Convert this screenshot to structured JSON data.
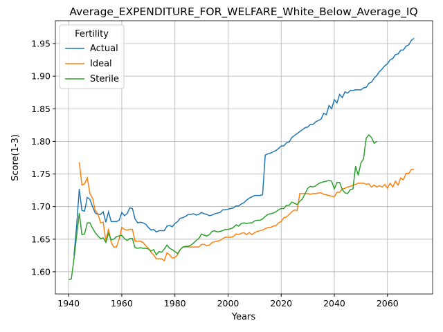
{
  "chart_data": {
    "type": "line",
    "title": "Average_EXPENDITURE_FOR_WELFARE_White_Below_Average_IQ",
    "x_label": "Years",
    "y_label": "Score(1-3)",
    "legend_title": "Fertility",
    "legend_position": "upper left",
    "grid": true,
    "xlim": [
      1935,
      2077
    ],
    "ylim": [
      1.566,
      1.985
    ],
    "xticks": [
      1940,
      1960,
      1980,
      2000,
      2020,
      2040,
      2060
    ],
    "yticks": [
      {
        "value": 1.6,
        "label": "1.60"
      },
      1.65,
      {
        "value": 1.7,
        "label": "1.70"
      },
      1.75,
      {
        "value": 1.8,
        "label": "1.80"
      },
      1.85,
      {
        "value": 1.9,
        "label": "1.90"
      },
      1.95
    ],
    "x": [
      1940,
      1941,
      1942,
      1943,
      1944,
      1945,
      1946,
      1947,
      1948,
      1949,
      1950,
      1951,
      1952,
      1953,
      1954,
      1955,
      1956,
      1957,
      1958,
      1959,
      1960,
      1961,
      1962,
      1963,
      1964,
      1965,
      1966,
      1967,
      1968,
      1969,
      1970,
      1971,
      1972,
      1973,
      1974,
      1975,
      1976,
      1977,
      1978,
      1979,
      1980,
      1981,
      1982,
      1983,
      1984,
      1985,
      1986,
      1987,
      1988,
      1989,
      1990,
      1991,
      1992,
      1993,
      1994,
      1995,
      1996,
      1997,
      1998,
      1999,
      2000,
      2001,
      2002,
      2003,
      2004,
      2005,
      2006,
      2007,
      2008,
      2009,
      2010,
      2011,
      2012,
      2013,
      2014,
      2015,
      2016,
      2017,
      2018,
      2019,
      2020,
      2021,
      2022,
      2023,
      2024,
      2025,
      2026,
      2027,
      2028,
      2029,
      2030,
      2031,
      2032,
      2033,
      2034,
      2035,
      2036,
      2037,
      2038,
      2039,
      2040,
      2041,
      2042,
      2043,
      2044,
      2045,
      2046,
      2047,
      2048,
      2049,
      2050,
      2051,
      2052,
      2053,
      2054,
      2055,
      2056,
      2057,
      2058,
      2059,
      2060,
      2061,
      2062,
      2063,
      2064,
      2065,
      2066,
      2067,
      2068,
      2069,
      2070
    ],
    "series": [
      {
        "name": "Actual",
        "color": "#1f77b4",
        "values": [
          null,
          null,
          1.625,
          1.67,
          1.727,
          1.694,
          1.693,
          1.714,
          1.711,
          1.7,
          1.69,
          1.688,
          1.688,
          1.692,
          1.676,
          1.692,
          1.677,
          1.677,
          1.677,
          1.679,
          1.691,
          1.686,
          1.689,
          1.698,
          1.697,
          1.681,
          1.675,
          1.676,
          1.675,
          1.673,
          1.668,
          1.664,
          1.665,
          1.661,
          1.663,
          1.663,
          1.663,
          1.67,
          1.671,
          1.669,
          1.674,
          1.677,
          1.682,
          1.683,
          1.685,
          1.688,
          1.688,
          1.689,
          1.687,
          1.688,
          1.691,
          1.689,
          1.688,
          1.686,
          1.687,
          1.689,
          1.69,
          1.691,
          1.695,
          1.695,
          1.696,
          1.697,
          1.698,
          1.701,
          1.701,
          1.704,
          1.706,
          1.71,
          1.713,
          1.715,
          1.717,
          1.717,
          1.717,
          1.718,
          1.779,
          1.781,
          1.782,
          1.784,
          1.786,
          1.789,
          1.793,
          1.793,
          1.798,
          1.799,
          1.806,
          1.809,
          1.812,
          1.815,
          1.818,
          1.821,
          1.822,
          1.826,
          1.826,
          1.83,
          1.832,
          1.834,
          1.843,
          1.841,
          1.855,
          1.85,
          1.864,
          1.859,
          1.872,
          1.867,
          1.876,
          1.874,
          1.878,
          1.878,
          1.879,
          1.879,
          1.879,
          1.882,
          1.883,
          1.889,
          1.891,
          1.897,
          1.901,
          1.907,
          1.911,
          1.916,
          1.919,
          1.925,
          1.927,
          1.933,
          1.934,
          1.94,
          1.94,
          1.946,
          1.948,
          1.955,
          1.958
        ]
      },
      {
        "name": "Ideal",
        "color": "#ff7f0e",
        "values": [
          null,
          null,
          null,
          null,
          1.768,
          1.733,
          1.735,
          1.744,
          1.72,
          1.713,
          1.694,
          1.689,
          1.675,
          1.676,
          1.647,
          1.666,
          1.645,
          1.638,
          1.638,
          1.65,
          1.668,
          1.665,
          1.664,
          1.665,
          1.665,
          1.647,
          1.647,
          1.647,
          1.645,
          1.64,
          1.636,
          1.63,
          1.626,
          1.62,
          1.62,
          1.62,
          1.617,
          1.629,
          1.626,
          1.621,
          1.622,
          1.626,
          1.634,
          1.638,
          1.638,
          1.638,
          1.638,
          1.638,
          1.638,
          1.638,
          1.642,
          1.642,
          1.64,
          1.641,
          1.645,
          1.646,
          1.647,
          1.648,
          1.651,
          1.653,
          1.653,
          1.653,
          1.654,
          1.658,
          1.657,
          1.659,
          1.66,
          1.657,
          1.66,
          1.657,
          1.66,
          1.662,
          1.663,
          1.664,
          1.666,
          1.668,
          1.668,
          1.67,
          1.671,
          1.675,
          1.677,
          1.683,
          1.684,
          1.688,
          1.692,
          1.695,
          1.694,
          1.72,
          1.72,
          1.72,
          1.72,
          1.719,
          1.72,
          1.72,
          1.721,
          1.721,
          1.719,
          1.718,
          1.717,
          1.716,
          1.715,
          1.722,
          1.722,
          1.727,
          1.728,
          1.73,
          1.731,
          1.733,
          1.734,
          1.736,
          1.736,
          1.736,
          1.734,
          1.735,
          1.73,
          1.733,
          1.73,
          1.732,
          1.73,
          1.734,
          1.728,
          1.736,
          1.73,
          1.739,
          1.733,
          1.744,
          1.741,
          1.751,
          1.751,
          1.757,
          1.757
        ]
      },
      {
        "name": "Sterile",
        "color": "#2ca02c",
        "values": [
          1.588,
          1.589,
          1.62,
          1.655,
          1.69,
          1.657,
          1.658,
          1.675,
          1.675,
          1.667,
          1.66,
          1.655,
          1.651,
          1.652,
          1.645,
          1.659,
          1.649,
          1.65,
          1.654,
          1.655,
          1.656,
          1.651,
          1.648,
          1.651,
          1.651,
          1.637,
          1.636,
          1.637,
          1.636,
          1.636,
          1.635,
          1.632,
          1.634,
          1.626,
          1.631,
          1.63,
          1.635,
          1.641,
          1.636,
          1.634,
          1.631,
          1.628,
          1.634,
          1.638,
          1.639,
          1.639,
          1.641,
          1.644,
          1.648,
          1.651,
          1.658,
          1.656,
          1.655,
          1.657,
          1.662,
          1.663,
          1.661,
          1.662,
          1.663,
          1.665,
          1.665,
          1.666,
          1.668,
          1.672,
          1.67,
          1.674,
          1.675,
          1.674,
          1.675,
          1.675,
          1.678,
          1.679,
          1.679,
          1.681,
          1.685,
          1.688,
          1.689,
          1.69,
          1.692,
          1.695,
          1.697,
          1.697,
          1.702,
          1.702,
          1.707,
          1.705,
          1.703,
          1.708,
          1.712,
          1.72,
          1.728,
          1.731,
          1.73,
          1.732,
          1.735,
          1.737,
          1.738,
          1.739,
          1.74,
          1.739,
          1.727,
          1.737,
          1.737,
          1.726,
          1.721,
          1.72,
          1.726,
          1.727,
          1.762,
          1.748,
          1.767,
          1.773,
          1.805,
          1.81,
          1.806,
          1.797,
          1.8,
          null,
          null,
          null,
          null,
          null,
          null,
          null,
          null,
          null,
          null,
          null,
          null,
          null,
          null
        ]
      }
    ]
  }
}
